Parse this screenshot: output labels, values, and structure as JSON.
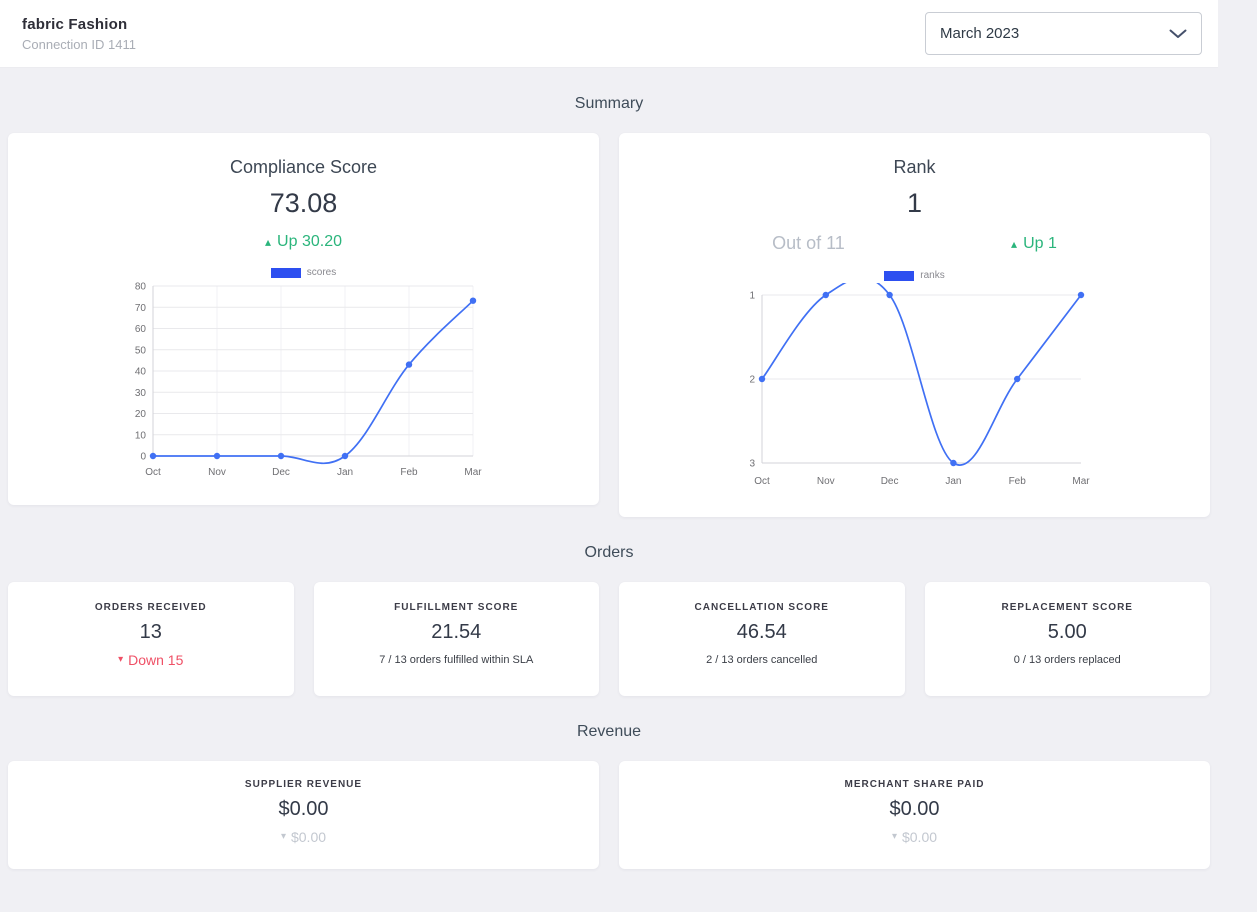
{
  "header": {
    "title": "fabric Fashion",
    "subtitle": "Connection ID 1411",
    "month_dropdown": {
      "selected": "March 2023"
    }
  },
  "icons": {
    "up_triangle": "▴",
    "down_triangle": "▾",
    "chevron_down": "chevron-down"
  },
  "colors": {
    "chart_line_blue": "#4070f4",
    "legend_blue": "#2d4ff0",
    "positive_green": "#2bb57c",
    "negative_red": "#ef5066",
    "muted_gray": "#c3c8d0"
  },
  "sections": {
    "summary_title": "Summary",
    "orders_title": "Orders",
    "revenue_title": "Revenue"
  },
  "summary": {
    "compliance": {
      "title": "Compliance Score",
      "value": "73.08",
      "delta_label": "Up 30.20",
      "delta_direction": "up"
    },
    "rank": {
      "title": "Rank",
      "value": "1",
      "out_of_label": "Out of 11",
      "delta_label": "Up 1",
      "delta_direction": "up"
    }
  },
  "orders": {
    "cards": [
      {
        "label": "ORDERS RECEIVED",
        "value": "13",
        "delta_label": "Down 15",
        "delta_direction": "down"
      },
      {
        "label": "FULFILLMENT SCORE",
        "value": "21.54",
        "sub": "7 / 13 orders fulfilled within SLA"
      },
      {
        "label": "CANCELLATION SCORE",
        "value": "46.54",
        "sub": "2 / 13 orders cancelled"
      },
      {
        "label": "REPLACEMENT SCORE",
        "value": "5.00",
        "sub": "0 / 13 orders replaced"
      }
    ]
  },
  "revenue": {
    "cards": [
      {
        "label": "SUPPLIER REVENUE",
        "value": "$0.00",
        "delta_label": "$0.00",
        "delta_direction": "down"
      },
      {
        "label": "MERCHANT SHARE PAID",
        "value": "$0.00",
        "delta_label": "$0.00",
        "delta_direction": "down"
      }
    ]
  },
  "chart_data": [
    {
      "type": "line",
      "name": "scores",
      "legend": "scores",
      "categories": [
        "Oct",
        "Nov",
        "Dec",
        "Jan",
        "Feb",
        "Mar"
      ],
      "values": [
        0,
        0,
        0,
        0,
        43,
        73.08
      ],
      "y_axis": {
        "top_value": 80,
        "bottom_value": 0,
        "ticks": [
          0,
          10,
          20,
          30,
          40,
          50,
          60,
          70,
          80
        ]
      },
      "grid": true,
      "legend_position": "top"
    },
    {
      "type": "line",
      "name": "ranks",
      "legend": "ranks",
      "categories": [
        "Oct",
        "Nov",
        "Dec",
        "Jan",
        "Feb",
        "Mar"
      ],
      "values": [
        2,
        1,
        1,
        3,
        2,
        1
      ],
      "y_axis": {
        "top_value": 1,
        "bottom_value": 3,
        "ticks": [
          1,
          2,
          3
        ],
        "inverted": true
      },
      "grid": true,
      "legend_position": "top"
    }
  ]
}
